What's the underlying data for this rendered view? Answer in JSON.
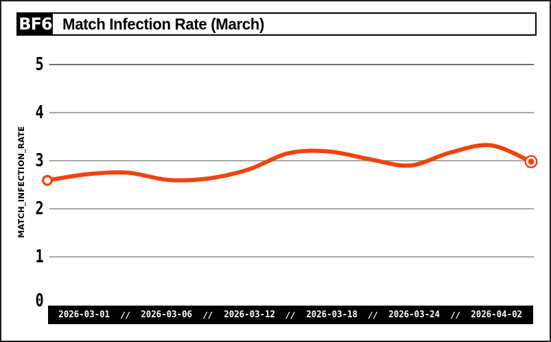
{
  "window": {
    "background": "#ffffff",
    "border_color": "#1f1f1f"
  },
  "header": {
    "badge": "BF6",
    "title": "Match Infection Rate (March)"
  },
  "chart_data": {
    "type": "line",
    "title": "Match Infection Rate (March)",
    "xlabel": "",
    "ylabel": "MATCH_INFECTION_RATE",
    "ylim": [
      0,
      5
    ],
    "y_ticks": [
      0,
      1,
      2,
      3,
      4,
      5
    ],
    "x_tick_labels": [
      "2026-03-01",
      "2026-03-06",
      "2026-03-12",
      "2026-03-18",
      "2026-03-24",
      "2026-04-02"
    ],
    "x_tick_separator": "//",
    "series": [
      {
        "name": "match_infection_rate",
        "values": [
          2.59,
          2.72,
          2.75,
          2.6,
          2.63,
          2.82,
          3.16,
          3.19,
          3.03,
          2.9,
          3.17,
          3.32,
          2.98
        ]
      }
    ],
    "grid": true,
    "legend": false,
    "line_color": "#f2420d",
    "grid_color": "#8a8a8a",
    "top_grid_color": "#3e3e3e",
    "axis_bar_bg": "#000000",
    "axis_bar_text": "#ffffff",
    "marker_start": "open-circle",
    "marker_end": "ringed-dot"
  }
}
